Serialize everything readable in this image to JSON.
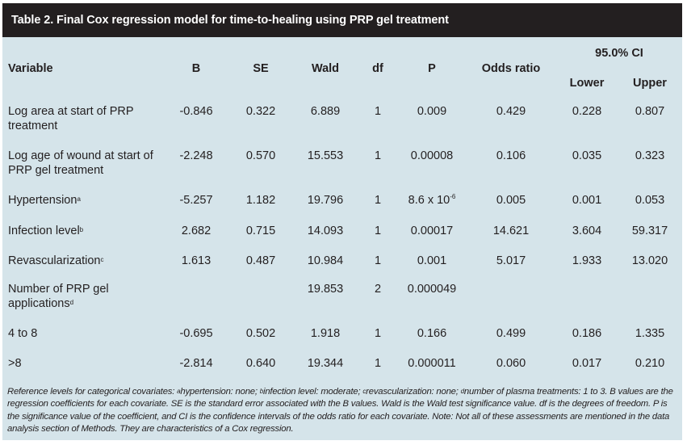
{
  "title": "Table 2. Final Cox regression model for time-to-healing using PRP gel treatment",
  "headers": {
    "variable": "Variable",
    "b": "B",
    "se": "SE",
    "wald": "Wald",
    "df": "df",
    "p": "P",
    "odds_ratio": "Odds ratio",
    "ci": "95.0% CI",
    "lower": "Lower",
    "upper": "Upper"
  },
  "rows": [
    {
      "variable": "Log area at start of PRP treatment",
      "sup": "",
      "b": "-0.846",
      "se": "0.322",
      "wald": "6.889",
      "df": "1",
      "p": "0.009",
      "p_sup": "",
      "odds_ratio": "0.429",
      "lower": "0.228",
      "upper": "0.807"
    },
    {
      "variable": "Log age of wound at start of PRP gel treatment",
      "sup": "",
      "b": "-2.248",
      "se": "0.570",
      "wald": "15.553",
      "df": "1",
      "p": "0.00008",
      "p_sup": "",
      "odds_ratio": "0.106",
      "lower": "0.035",
      "upper": "0.323"
    },
    {
      "variable": "Hypertension",
      "sup": "a",
      "b": "-5.257",
      "se": "1.182",
      "wald": "19.796",
      "df": "1",
      "p": "8.6 x 10",
      "p_sup": "-6",
      "odds_ratio": "0.005",
      "lower": "0.001",
      "upper": "0.053"
    },
    {
      "variable": "Infection level",
      "sup": "b",
      "b": "2.682",
      "se": "0.715",
      "wald": "14.093",
      "df": "1",
      "p": "0.00017",
      "p_sup": "",
      "odds_ratio": "14.621",
      "lower": "3.604",
      "upper": "59.317"
    },
    {
      "variable": "Revascularization",
      "sup": "c",
      "b": "1.613",
      "se": "0.487",
      "wald": "10.984",
      "df": "1",
      "p": "0.001",
      "p_sup": "",
      "odds_ratio": "5.017",
      "lower": "1.933",
      "upper": "13.020"
    },
    {
      "variable": "Number of PRP gel applications",
      "sup": "d",
      "b": "",
      "se": "",
      "wald": "19.853",
      "df": "2",
      "p": "0.000049",
      "p_sup": "",
      "odds_ratio": "",
      "lower": "",
      "upper": ""
    },
    {
      "variable": "4 to 8",
      "sup": "",
      "b": "-0.695",
      "se": "0.502",
      "wald": "1.918",
      "df": "1",
      "p": "0.166",
      "p_sup": "",
      "odds_ratio": "0.499",
      "lower": "0.186",
      "upper": "1.335"
    },
    {
      "variable": ">8",
      "sup": "",
      "b": "-2.814",
      "se": "0.640",
      "wald": "19.344",
      "df": "1",
      "p": "0.000011",
      "p_sup": "",
      "odds_ratio": "0.060",
      "lower": "0.017",
      "upper": "0.210"
    }
  ],
  "footnote": {
    "lead": "Reference levels for categorical covariates: ",
    "items": [
      {
        "sup": "a",
        "text": "hypertension: none; "
      },
      {
        "sup": "b",
        "text": "infection level: moderate; "
      },
      {
        "sup": "c",
        "text": "revascularization: none; "
      },
      {
        "sup": "d",
        "text": "number of plasma treatments: 1 to 3."
      }
    ],
    "body": "B values are the regression coefficients for each covariate. SE is the standard error associated with the B values. Wald is the Wald test significance value. df is the degrees of freedom. P is the significance value of the coefficient, and CI is the confidence intervals of the odds ratio for each covariate. Note: Not all of these assessments are mentioned in the data analysis section of Methods. They are characteristics of a Cox regression."
  },
  "colors": {
    "header_bg": "#231f20",
    "table_bg": "#d5e4ea",
    "text": "#231f20"
  }
}
